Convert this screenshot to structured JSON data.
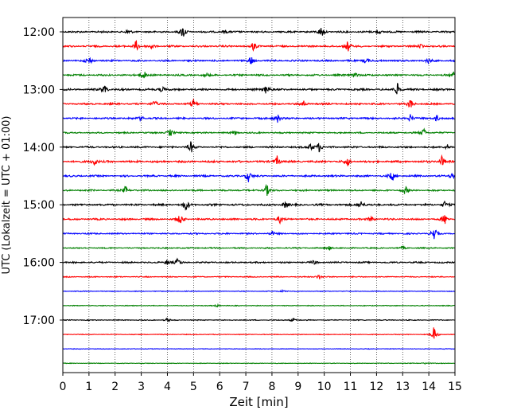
{
  "chart_data": {
    "type": "line",
    "xlabel": "Zeit  [min]",
    "ylabel": "UTC (Lokalzeit = UTC + 01:00)",
    "xlim": [
      0,
      15
    ],
    "x_ticks": [
      "0",
      "1",
      "2",
      "3",
      "4",
      "5",
      "6",
      "7",
      "8",
      "9",
      "10",
      "11",
      "12",
      "13",
      "14",
      "15"
    ],
    "x_grid": "dotted",
    "y_tick_labels": [
      "12:00",
      "13:00",
      "14:00",
      "15:00",
      "16:00",
      "17:00"
    ],
    "trace_interval_min": 15,
    "color_cycle": [
      "#000000",
      "#ff0000",
      "#0000ff",
      "#008000"
    ],
    "traces": [
      {
        "start": "12:00",
        "color": "#000000",
        "noise": 0.35,
        "events": [
          [
            4.6,
            1.0
          ],
          [
            9.9,
            0.9
          ],
          [
            2.5,
            0.3
          ],
          [
            6.2,
            0.3
          ],
          [
            12.1,
            0.3
          ]
        ]
      },
      {
        "start": "12:15",
        "color": "#ff0000",
        "noise": 0.35,
        "events": [
          [
            2.8,
            0.9
          ],
          [
            3.4,
            0.4
          ],
          [
            7.3,
            0.7
          ],
          [
            10.9,
            0.9
          ],
          [
            13.7,
            0.3
          ]
        ]
      },
      {
        "start": "12:30",
        "color": "#0000ff",
        "noise": 0.35,
        "events": [
          [
            1.0,
            0.6
          ],
          [
            7.2,
            0.7
          ],
          [
            11.6,
            0.5
          ],
          [
            14.0,
            0.4
          ]
        ]
      },
      {
        "start": "12:45",
        "color": "#008000",
        "noise": 0.35,
        "events": [
          [
            3.1,
            0.7
          ],
          [
            11.2,
            0.5
          ],
          [
            15.0,
            0.8
          ],
          [
            5.5,
            0.3
          ]
        ]
      },
      {
        "start": "13:00",
        "color": "#000000",
        "noise": 0.38,
        "events": [
          [
            1.6,
            0.8
          ],
          [
            3.8,
            0.5
          ],
          [
            7.8,
            0.9
          ],
          [
            12.8,
            0.9
          ]
        ]
      },
      {
        "start": "13:15",
        "color": "#ff0000",
        "noise": 0.35,
        "events": [
          [
            3.5,
            0.6
          ],
          [
            5.0,
            0.7
          ],
          [
            9.2,
            0.5
          ],
          [
            13.3,
            0.8
          ]
        ]
      },
      {
        "start": "13:30",
        "color": "#0000ff",
        "noise": 0.35,
        "events": [
          [
            3.0,
            0.4
          ],
          [
            8.2,
            0.8
          ],
          [
            13.3,
            0.6
          ],
          [
            14.3,
            0.5
          ]
        ]
      },
      {
        "start": "13:45",
        "color": "#008000",
        "noise": 0.3,
        "events": [
          [
            4.1,
            0.6
          ],
          [
            6.6,
            0.3
          ],
          [
            13.8,
            0.7
          ]
        ]
      },
      {
        "start": "14:00",
        "color": "#000000",
        "noise": 0.35,
        "events": [
          [
            4.9,
            0.9
          ],
          [
            9.5,
            0.6
          ],
          [
            9.8,
            0.7
          ],
          [
            14.7,
            0.4
          ]
        ]
      },
      {
        "start": "14:15",
        "color": "#ff0000",
        "noise": 0.4,
        "events": [
          [
            1.2,
            0.7
          ],
          [
            8.2,
            0.8
          ],
          [
            10.9,
            0.6
          ],
          [
            14.5,
            0.8
          ]
        ]
      },
      {
        "start": "14:30",
        "color": "#0000ff",
        "noise": 0.35,
        "events": [
          [
            7.1,
            0.9
          ],
          [
            12.6,
            0.8
          ],
          [
            14.9,
            0.5
          ]
        ]
      },
      {
        "start": "14:45",
        "color": "#008000",
        "noise": 0.33,
        "events": [
          [
            2.4,
            0.6
          ],
          [
            7.8,
            0.9
          ],
          [
            13.1,
            0.6
          ]
        ]
      },
      {
        "start": "15:00",
        "color": "#000000",
        "noise": 0.38,
        "events": [
          [
            4.7,
            0.9
          ],
          [
            8.5,
            0.5
          ],
          [
            11.4,
            0.6
          ],
          [
            14.6,
            0.5
          ]
        ]
      },
      {
        "start": "15:15",
        "color": "#ff0000",
        "noise": 0.35,
        "events": [
          [
            4.5,
            0.8
          ],
          [
            8.3,
            0.6
          ],
          [
            11.8,
            0.5
          ],
          [
            14.6,
            0.8
          ]
        ]
      },
      {
        "start": "15:30",
        "color": "#0000ff",
        "noise": 0.3,
        "events": [
          [
            14.2,
            1.0
          ],
          [
            8.0,
            0.3
          ]
        ]
      },
      {
        "start": "15:45",
        "color": "#008000",
        "noise": 0.25,
        "events": [
          [
            10.2,
            0.3
          ],
          [
            13.0,
            0.2
          ]
        ]
      },
      {
        "start": "16:00",
        "color": "#000000",
        "noise": 0.3,
        "events": [
          [
            4.0,
            0.5
          ],
          [
            4.4,
            0.6
          ],
          [
            9.6,
            0.3
          ]
        ]
      },
      {
        "start": "16:15",
        "color": "#ff0000",
        "noise": 0.2,
        "events": [
          [
            9.8,
            0.4
          ]
        ]
      },
      {
        "start": "16:30",
        "color": "#0000ff",
        "noise": 0.15,
        "events": [
          [
            8.4,
            0.2
          ]
        ]
      },
      {
        "start": "16:45",
        "color": "#008000",
        "noise": 0.15,
        "events": [
          [
            5.9,
            0.2
          ]
        ]
      },
      {
        "start": "17:00",
        "color": "#000000",
        "noise": 0.18,
        "events": [
          [
            4.0,
            0.3
          ],
          [
            8.8,
            0.3
          ]
        ]
      },
      {
        "start": "17:15",
        "color": "#ff0000",
        "noise": 0.15,
        "events": [
          [
            14.2,
            1.2
          ]
        ]
      },
      {
        "start": "17:30",
        "color": "#0000ff",
        "noise": 0.12,
        "events": []
      },
      {
        "start": "17:45",
        "color": "#008000",
        "noise": 0.12,
        "events": [
          [
            13.9,
            0.2
          ]
        ]
      }
    ]
  }
}
